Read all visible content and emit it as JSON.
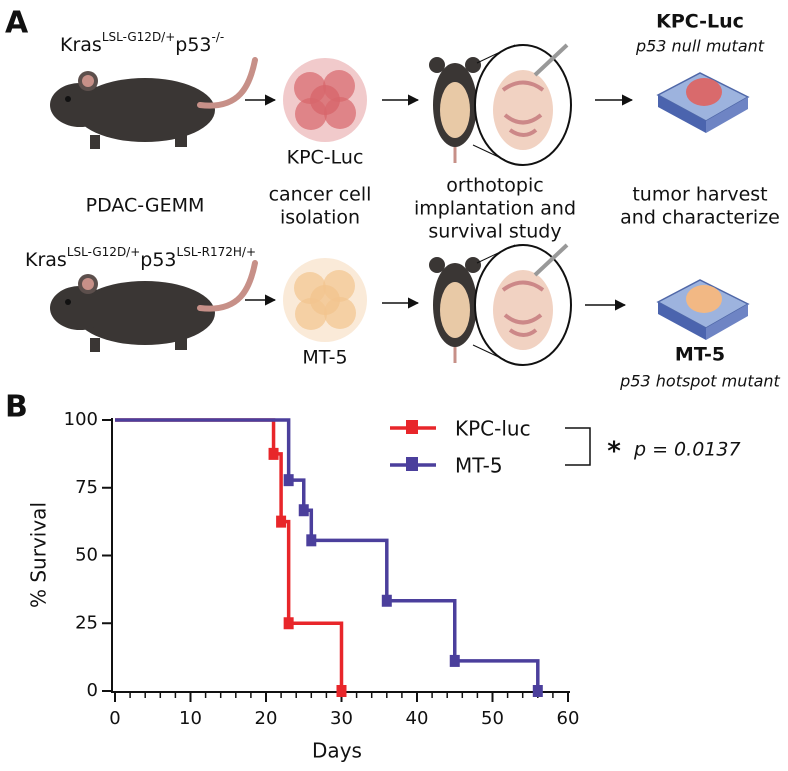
{
  "panel_a": {
    "label": "A",
    "row1": {
      "genotype": [
        "Kras",
        "LSL-G12D/+",
        "p53",
        "-/-"
      ],
      "cells": "KPC-Luc",
      "model": "KPC-Luc",
      "mutant": "p53 null mutant"
    },
    "row2": {
      "genotype": [
        "Kras",
        "LSL-G12D/+",
        "p53",
        "LSL-R172H/+"
      ],
      "cells": "MT-5",
      "model": "MT-5",
      "mutant": "p53 hotspot mutant"
    },
    "steps": [
      [
        "PDAC-GEMM"
      ],
      [
        "cancer cell",
        "isolation"
      ],
      [
        "orthotopic",
        "implantation and",
        "survival study"
      ],
      [
        "tumor harvest",
        "and characterize"
      ]
    ]
  },
  "chart_data": {
    "type": "survival",
    "panel_label": "B",
    "x_label": "Days",
    "y_label": "% Survival",
    "xlim": [
      0,
      60
    ],
    "ylim": [
      0,
      100
    ],
    "xticks": [
      0,
      10,
      20,
      30,
      40,
      50,
      60
    ],
    "xminorticks": [
      2,
      4,
      6,
      8,
      12,
      14,
      16,
      18,
      22,
      24,
      26,
      28,
      32,
      34,
      36,
      38,
      42,
      44,
      46,
      48,
      52,
      54,
      56,
      58
    ],
    "yticks": [
      0,
      25,
      50,
      75,
      100
    ],
    "series": [
      {
        "name": "KPC-luc",
        "color": "#e8262a",
        "x": [
          0,
          21,
          22,
          23,
          30
        ],
        "values": [
          100,
          87.5,
          62.5,
          25,
          0
        ]
      },
      {
        "name": "MT-5",
        "color": "#4b3f9c",
        "x": [
          0,
          23,
          25,
          26,
          36,
          45,
          56
        ],
        "values": [
          100,
          77.8,
          66.7,
          55.6,
          33.3,
          11.1,
          0
        ]
      }
    ],
    "annotation": {
      "marker": "*",
      "text": "p = 0.0137"
    }
  }
}
